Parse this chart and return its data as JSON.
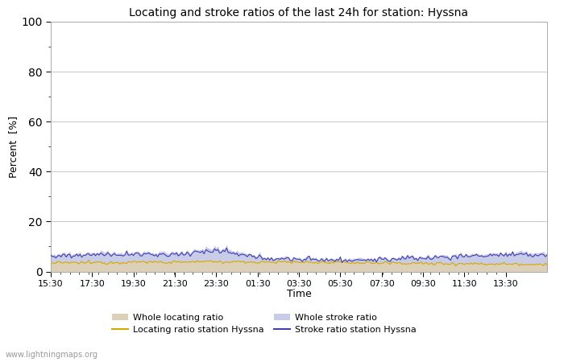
{
  "title": "Locating and stroke ratios of the last 24h for station: Hyssna",
  "xlabel": "Time",
  "ylabel": "Percent  [%]",
  "xlim": [
    0,
    48
  ],
  "ylim": [
    0,
    100
  ],
  "yticks": [
    0,
    20,
    40,
    60,
    80,
    100
  ],
  "minor_yticks": [
    10,
    30,
    50,
    70,
    90
  ],
  "xtick_labels": [
    "15:30",
    "17:30",
    "19:30",
    "21:30",
    "23:30",
    "01:30",
    "03:30",
    "05:30",
    "07:30",
    "09:30",
    "11:30",
    "13:30"
  ],
  "watermark": "www.lightningmaps.org",
  "background_color": "#ffffff",
  "plot_bg_color": "#ffffff",
  "whole_locating_fill_color": "#ddd0b8",
  "whole_stroke_fill_color": "#c8cce8",
  "locating_line_color": "#d4a800",
  "stroke_line_color": "#4040b0",
  "grid_color": "#c8c8c8"
}
